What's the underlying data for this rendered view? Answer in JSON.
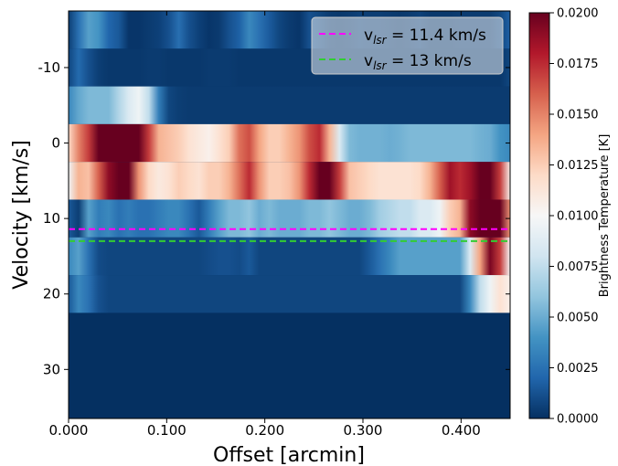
{
  "chart_data": {
    "type": "heatmap",
    "title": "",
    "xlabel": "Offset [arcmin]",
    "ylabel": "Velocity [km/s]",
    "xlim": [
      0.0,
      0.45
    ],
    "ylim": [
      36.5,
      -17.5
    ],
    "x_ticks": [
      {
        "value": 0.0,
        "label": "0.000"
      },
      {
        "value": 0.1,
        "label": "0.100"
      },
      {
        "value": 0.2,
        "label": "0.200"
      },
      {
        "value": 0.3,
        "label": "0.300"
      },
      {
        "value": 0.4,
        "label": "0.400"
      }
    ],
    "y_ticks": [
      {
        "value": -10,
        "label": "-10"
      },
      {
        "value": 0,
        "label": "0"
      },
      {
        "value": 10,
        "label": "10"
      },
      {
        "value": 20,
        "label": "20"
      },
      {
        "value": 30,
        "label": "30"
      }
    ],
    "colormap": "RdBu_r",
    "colorbar": {
      "label": "Brightness Temperature [K]",
      "vmin": 0.0,
      "vmax": 0.02,
      "ticks": [
        "0.0000",
        "0.0025",
        "0.0050",
        "0.0075",
        "0.0100",
        "0.0125",
        "0.0150",
        "0.0175",
        "0.0200"
      ]
    },
    "rows": [
      {
        "v": -15.5,
        "values": [
          0.0005,
          0.0025,
          0.0045,
          0.004,
          0.002,
          0.0015,
          0.0002,
          0.0002,
          0.0004,
          0.0006,
          0.0012,
          0.0024,
          0.0012,
          0.0006,
          0.0002,
          0.0004,
          0.0012,
          0.0018,
          0.0035,
          0.0025,
          0.0016,
          0.0008,
          0.0004,
          0.0002,
          0.0012,
          0.0008,
          0.0004,
          0.0003,
          0.0004,
          0.0006,
          0.0005,
          0.0005,
          0.0004,
          0.0003,
          0.0004,
          0.0006,
          0.0003,
          0.0003,
          0.0003,
          0.0004,
          0.0004,
          0.0004,
          0.0004,
          0.0008,
          0.0018
        ]
      },
      {
        "v": -10.5,
        "values": [
          0.0008,
          0.0022,
          0.0012,
          0.0005,
          0.0003,
          0.0003,
          0.0003,
          0.0003,
          0.0004,
          0.0004,
          0.0003,
          0.0003,
          0.0003,
          0.0003,
          0.0004,
          0.0004,
          0.0004,
          0.0003,
          0.0003,
          0.0003,
          0.0003,
          0.0003,
          0.0003,
          0.0003,
          0.0003,
          0.0003,
          0.0003,
          0.0003,
          0.0003,
          0.0003,
          0.0003,
          0.0003,
          0.0003,
          0.0003,
          0.0003,
          0.0003,
          0.0003,
          0.0003,
          0.0003,
          0.0003,
          0.0003,
          0.0003,
          0.0003,
          0.0003,
          0.0008
        ]
      },
      {
        "v": -5.5,
        "values": [
          0.0035,
          0.0048,
          0.0055,
          0.0055,
          0.0055,
          0.007,
          0.0085,
          0.0095,
          0.0075,
          0.003,
          0.0008,
          0.0005,
          0.0004,
          0.0004,
          0.0004,
          0.0004,
          0.0004,
          0.0004,
          0.0004,
          0.0004,
          0.0004,
          0.0004,
          0.0004,
          0.0004,
          0.0004,
          0.0004,
          0.0004,
          0.0004,
          0.0004,
          0.0004,
          0.0004,
          0.0004,
          0.0004,
          0.0004,
          0.0004,
          0.0004,
          0.0004,
          0.0004,
          0.0004,
          0.0004,
          0.0004,
          0.0004,
          0.0004,
          0.0004,
          0.0004
        ]
      },
      {
        "v": -0.5,
        "values": [
          0.012,
          0.015,
          0.017,
          0.02,
          0.02,
          0.02,
          0.02,
          0.02,
          0.017,
          0.0135,
          0.013,
          0.0125,
          0.0115,
          0.011,
          0.0105,
          0.0115,
          0.0125,
          0.0155,
          0.0165,
          0.014,
          0.0125,
          0.0125,
          0.0135,
          0.0145,
          0.0165,
          0.0175,
          0.0135,
          0.0085,
          0.0055,
          0.0052,
          0.0052,
          0.0052,
          0.005,
          0.0052,
          0.0055,
          0.0055,
          0.0055,
          0.0055,
          0.0055,
          0.0055,
          0.0055,
          0.0052,
          0.005,
          0.004,
          0.0035
        ]
      },
      {
        "v": 4.5,
        "values": [
          0.0095,
          0.0135,
          0.013,
          0.016,
          0.019,
          0.02,
          0.02,
          0.0145,
          0.012,
          0.011,
          0.0115,
          0.0125,
          0.012,
          0.0115,
          0.0125,
          0.0125,
          0.0135,
          0.0155,
          0.0175,
          0.0145,
          0.0125,
          0.0125,
          0.013,
          0.0145,
          0.0175,
          0.02,
          0.02,
          0.017,
          0.013,
          0.0125,
          0.012,
          0.0115,
          0.0115,
          0.0115,
          0.0115,
          0.012,
          0.0135,
          0.016,
          0.0185,
          0.0175,
          0.0185,
          0.02,
          0.02,
          0.017,
          0.0105
        ]
      },
      {
        "v": 9.5,
        "values": [
          0.0015,
          0.0005,
          0.0045,
          0.003,
          0.0035,
          0.0025,
          0.003,
          0.0025,
          0.0025,
          0.003,
          0.0035,
          0.0035,
          0.0025,
          0.0015,
          0.003,
          0.0045,
          0.0055,
          0.0055,
          0.006,
          0.005,
          0.0055,
          0.005,
          0.005,
          0.005,
          0.0055,
          0.0055,
          0.006,
          0.0055,
          0.005,
          0.005,
          0.0055,
          0.0065,
          0.007,
          0.0075,
          0.0075,
          0.0085,
          0.0085,
          0.0095,
          0.0125,
          0.0135,
          0.019,
          0.02,
          0.02,
          0.02,
          0.0145
        ]
      },
      {
        "v": 14.5,
        "values": [
          0.0035,
          0.0045,
          0.0025,
          0.001,
          0.0008,
          0.0008,
          0.0008,
          0.0008,
          0.0008,
          0.0008,
          0.0008,
          0.0008,
          0.0008,
          0.0008,
          0.001,
          0.0012,
          0.0012,
          0.001,
          0.0015,
          0.0008,
          0.0008,
          0.0008,
          0.0008,
          0.0008,
          0.0008,
          0.0008,
          0.0008,
          0.0008,
          0.0008,
          0.0008,
          0.0015,
          0.0025,
          0.0035,
          0.0045,
          0.0045,
          0.0045,
          0.0045,
          0.0045,
          0.0045,
          0.0045,
          0.0085,
          0.014,
          0.0195,
          0.017,
          0.01
        ]
      },
      {
        "v": 19.5,
        "values": [
          0.0015,
          0.0035,
          0.0025,
          0.0012,
          0.0008,
          0.0008,
          0.0008,
          0.0008,
          0.0008,
          0.0008,
          0.0008,
          0.0008,
          0.0008,
          0.0008,
          0.0008,
          0.0008,
          0.0008,
          0.0008,
          0.0008,
          0.0008,
          0.0008,
          0.0008,
          0.0008,
          0.0008,
          0.0008,
          0.0008,
          0.0008,
          0.0008,
          0.0008,
          0.0008,
          0.0008,
          0.0008,
          0.0008,
          0.0008,
          0.0008,
          0.0008,
          0.0008,
          0.0008,
          0.0008,
          0.0008,
          0.0035,
          0.0075,
          0.0095,
          0.0115,
          0.0105
        ]
      }
    ],
    "v_edges": [
      -17.5,
      -12.5,
      -7.5,
      -2.5,
      2.5,
      7.5,
      12.5,
      17.5,
      22.5
    ],
    "series": [
      {
        "name": "v$_{lsr}$ = 11.4 km/s",
        "y": 11.4,
        "color": "#ff00ff"
      },
      {
        "name": "v$_{lsr}$ = 13 km/s",
        "y": 13,
        "color": "#32cd32"
      }
    ],
    "legend": {
      "position": "upper right",
      "entries": [
        {
          "prefix": "v",
          "sub": "lsr",
          "rest": " = 11.4 km/s",
          "color": "#ff00ff"
        },
        {
          "prefix": "v",
          "sub": "lsr",
          "rest": " = 13 km/s",
          "color": "#32cd32"
        }
      ]
    }
  }
}
